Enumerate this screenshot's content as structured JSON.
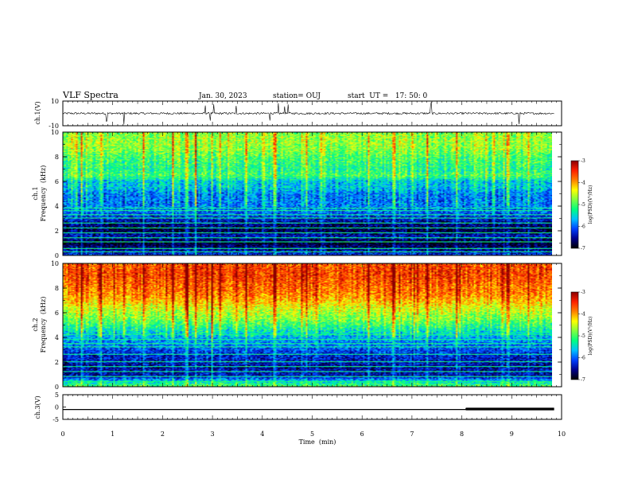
{
  "header": {
    "title": "VLF Spectra",
    "date": "Jan. 30, 2023",
    "station": "station= OUJ",
    "start": "start  UT =   17: 50: 0"
  },
  "colorbar": {
    "label": "log(PSD)(V²/Hz)",
    "ticks": [
      "-3",
      "-4",
      "-5",
      "-6",
      "-7"
    ],
    "stops": [
      "#8b0000",
      "#ff2000",
      "#ff8000",
      "#ffff00",
      "#80ff40",
      "#00ff80",
      "#00c0ff",
      "#0040ff",
      "#00008b",
      "#000000"
    ]
  },
  "chart_data": [
    {
      "panel": "ch1-waveform",
      "type": "line",
      "ylabel": "ch.1(V)",
      "ylim": [
        -10,
        10
      ],
      "yticks": [
        "10",
        "-10"
      ],
      "xlim": [
        0,
        9.85
      ],
      "spikes_min": [
        0.88,
        1.22,
        2.86,
        2.95,
        3.02,
        3.47,
        4.15,
        4.32,
        4.45,
        4.52,
        7.38,
        9.15
      ],
      "baseline_v": 0
    },
    {
      "panel": "ch1-spectrogram",
      "type": "heatmap",
      "ylabel": "ch.1",
      "ylabel2": "Frequency  (kHz)",
      "ylim": [
        0,
        10
      ],
      "yticks": [
        "0",
        "2",
        "4",
        "6",
        "8",
        "10"
      ],
      "xlim": [
        0,
        9.85
      ],
      "zlim": [
        -7,
        -3
      ],
      "profile": [
        [
          0,
          -6.2
        ],
        [
          0.4,
          -6.5
        ],
        [
          1,
          -6.9
        ],
        [
          1.5,
          -6.4
        ],
        [
          2,
          -6.8
        ],
        [
          2.5,
          -6.6
        ],
        [
          3,
          -6.3
        ],
        [
          3.5,
          -6.0
        ],
        [
          4,
          -5.9
        ],
        [
          4.5,
          -5.9
        ],
        [
          5,
          -5.9
        ],
        [
          5.5,
          -5.6
        ],
        [
          6,
          -5.6
        ],
        [
          6.5,
          -5.0
        ],
        [
          7,
          -5.2
        ],
        [
          7.5,
          -5.1
        ],
        [
          8,
          -5.0
        ],
        [
          8.5,
          -4.8
        ],
        [
          9,
          -4.7
        ],
        [
          9.5,
          -4.7
        ],
        [
          10,
          -4.8
        ]
      ],
      "lines_khz": [
        0.3,
        0.55,
        1.1,
        1.4,
        1.8,
        2.2,
        2.6,
        3.0,
        3.3,
        3.6,
        3.8
      ],
      "sferics_min": [
        0.35,
        0.75,
        1.62,
        2.2,
        2.48,
        2.65,
        3.0,
        3.15,
        3.68,
        4.25,
        4.9,
        6.15,
        6.65,
        7.32,
        7.9,
        8.95,
        9.35
      ]
    },
    {
      "panel": "ch2-spectrogram",
      "type": "heatmap",
      "ylabel": "ch.2",
      "ylabel2": "Frequency  (kHz)",
      "ylim": [
        0,
        10
      ],
      "yticks": [
        "0",
        "2",
        "4",
        "6",
        "8",
        "10"
      ],
      "xlim": [
        0,
        9.85
      ],
      "zlim": [
        -7,
        -3
      ],
      "profile": [
        [
          0,
          -5.0
        ],
        [
          0.4,
          -5.5
        ],
        [
          0.8,
          -6.4
        ],
        [
          1.5,
          -6.5
        ],
        [
          2,
          -6.4
        ],
        [
          2.5,
          -6.3
        ],
        [
          3,
          -6.1
        ],
        [
          3.5,
          -5.9
        ],
        [
          4,
          -5.7
        ],
        [
          4.5,
          -5.4
        ],
        [
          5,
          -5.1
        ],
        [
          5.5,
          -4.8
        ],
        [
          6,
          -4.6
        ],
        [
          6.5,
          -4.4
        ],
        [
          7,
          -4.1
        ],
        [
          7.5,
          -3.9
        ],
        [
          8,
          -3.8
        ],
        [
          8.5,
          -3.7
        ],
        [
          9,
          -3.6
        ],
        [
          9.5,
          -3.6
        ],
        [
          10,
          -3.7
        ]
      ],
      "lines_khz": [
        0.4,
        0.8,
        1.2,
        1.6,
        2.0,
        2.6,
        3.2,
        3.5,
        3.8,
        4.2
      ],
      "sferics_min": [
        0.35,
        0.75,
        1.62,
        2.2,
        2.48,
        2.65,
        3.0,
        3.15,
        3.68,
        4.25,
        4.9,
        6.15,
        6.65,
        7.32,
        7.9,
        8.95,
        9.35
      ]
    },
    {
      "panel": "ch3-level",
      "type": "line",
      "ylabel": "ch.3(V)",
      "ylim": [
        -5,
        5
      ],
      "yticks": [
        "5",
        "0",
        "-5"
      ],
      "xlim": [
        0,
        9.85
      ],
      "x": [
        0,
        8.08,
        8.08,
        9.85
      ],
      "y": [
        -1.0,
        -1.0,
        -0.8,
        -0.8
      ],
      "step_at_min": 8.08
    }
  ],
  "xaxis": {
    "label": "Time  (min)",
    "ticks": [
      "0",
      "1",
      "2",
      "3",
      "4",
      "5",
      "6",
      "7",
      "8",
      "9",
      "10"
    ],
    "range": [
      0,
      10
    ]
  }
}
